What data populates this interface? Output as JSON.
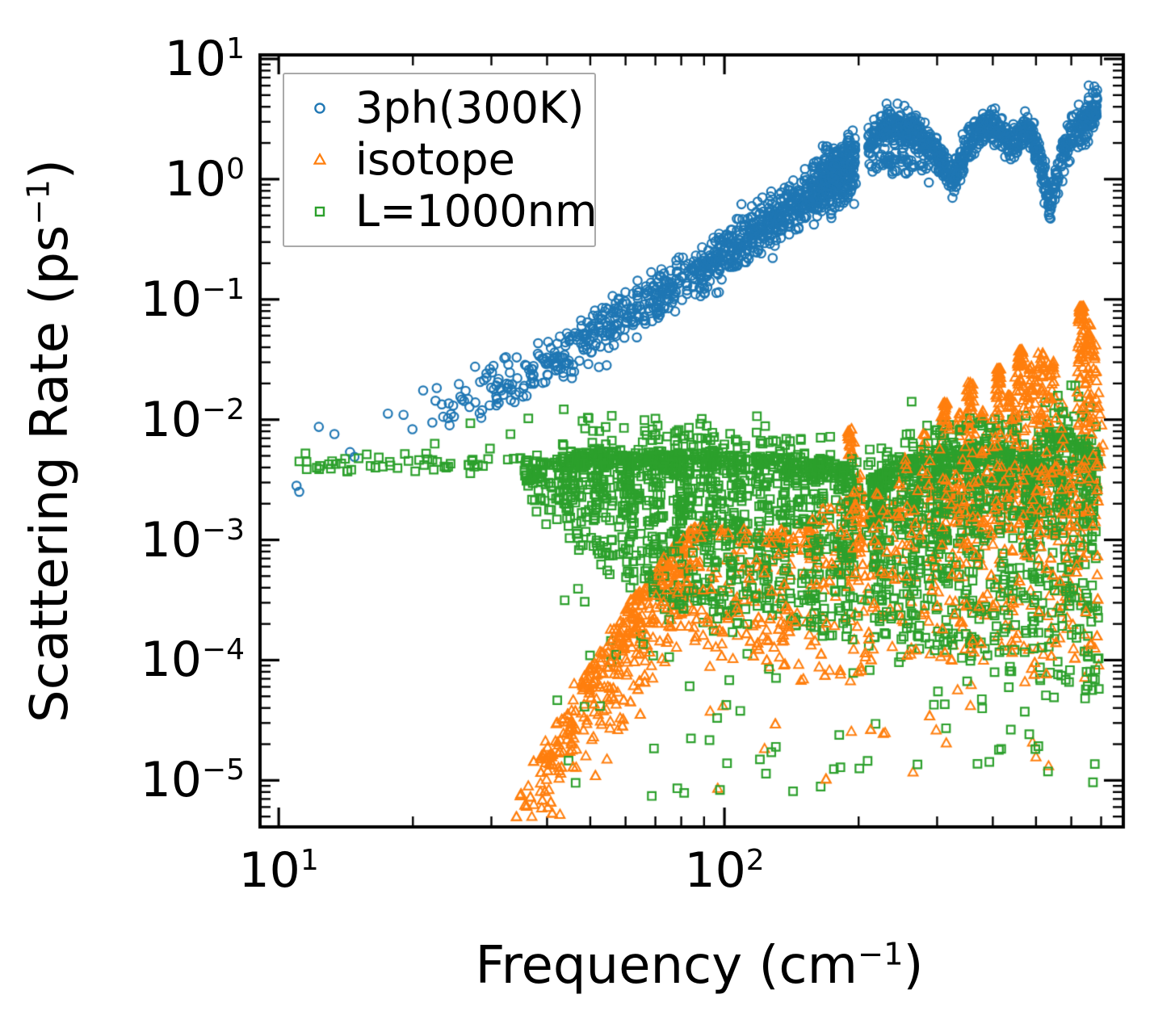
{
  "figure": {
    "background": "#ffffff",
    "frame_color": "#000000"
  },
  "chart_data": {
    "type": "scatter",
    "title": "",
    "scale": {
      "x": "log",
      "y": "log"
    },
    "xlabel": {
      "pre": "Frequency (cm",
      "sup": "−1",
      "post": ")"
    },
    "ylabel": {
      "pre": "Scattering Rate (ps",
      "sup": "−1",
      "post": ")"
    },
    "xlim": [
      9.08,
      785
    ],
    "ylim": [
      4.1e-06,
      10.8
    ],
    "grid": false,
    "tick_direction": "in",
    "x_major_ticks": [
      {
        "value": 10,
        "exp": "1"
      },
      {
        "value": 100,
        "exp": "2"
      }
    ],
    "y_major_ticks": [
      {
        "value": 10,
        "exp": "1"
      },
      {
        "value": 1,
        "exp": "0"
      },
      {
        "value": 0.1,
        "exp": "−1"
      },
      {
        "value": 0.01,
        "exp": "−2"
      },
      {
        "value": 0.001,
        "exp": "−3"
      },
      {
        "value": 0.0001,
        "exp": "−4"
      },
      {
        "value": 1e-05,
        "exp": "−5"
      }
    ],
    "legend": {
      "position": "upper-left",
      "border_color": "#a9a9a9",
      "entries": [
        {
          "label": "3ph(300K)",
          "marker": "circle",
          "color": "#1f77b4"
        },
        {
          "label": "isotope",
          "marker": "triangle",
          "color": "#ff7f0e"
        },
        {
          "label": "L=1000nm",
          "marker": "square",
          "color": "#2ca02c"
        }
      ]
    },
    "series": [
      {
        "name": "3ph(300K)",
        "marker": "circle",
        "color": "#1f77b4",
        "line_width": 2.2,
        "seed": 7,
        "summary": "Three-phonon scattering at 300K: rises ~ω² from (11 cm⁻¹, 3e-3 ps⁻¹) to (200 cm⁻¹, ~1.5 ps⁻¹), gap near 205 cm⁻¹, then plateau 2–3 ps⁻¹ with dips at ~330 and ~535 cm⁻¹ (to ~0.6), rising to ~6 ps⁻¹ at 680 cm⁻¹.",
        "cloud": [
          {
            "type": "points",
            "pts": [
              [
                1.04,
                -2.55
              ],
              [
                1.046,
                -2.6
              ],
              [
                1.09,
                -2.06
              ],
              [
                1.125,
                -2.12
              ],
              [
                1.16,
                -2.27
              ],
              [
                1.17,
                -2.31
              ],
              [
                1.245,
                -1.95
              ],
              [
                1.28,
                -1.96
              ],
              [
                1.3,
                -2.08
              ]
            ]
          },
          {
            "type": "band",
            "u0": 1.3,
            "u1": 2.295,
            "n": 950,
            "wexp": 2.0,
            "spread": 0.11,
            "anchors": [
              [
                1.3,
                -1.95
              ],
              [
                1.4,
                -1.87
              ],
              [
                1.5,
                -1.72
              ],
              [
                1.6,
                -1.55
              ],
              [
                1.7,
                -1.32
              ],
              [
                1.8,
                -1.08
              ],
              [
                1.9,
                -0.84
              ],
              [
                2.0,
                -0.6
              ],
              [
                2.1,
                -0.36
              ],
              [
                2.2,
                -0.13
              ],
              [
                2.25,
                -0.03
              ],
              [
                2.295,
                0.1
              ]
            ]
          },
          {
            "type": "band",
            "u0": 2.2,
            "u1": 2.295,
            "n": 120,
            "wexp": 1.3,
            "spread": 0.1,
            "anchors": [
              [
                2.2,
                0.02
              ],
              [
                2.25,
                0.12
              ],
              [
                2.295,
                0.2
              ]
            ]
          },
          {
            "type": "band",
            "u0": 2.322,
            "u1": 2.836,
            "n": 860,
            "wexp": 1.0,
            "spread": 0.075,
            "anchors": [
              [
                2.322,
                0.3
              ],
              [
                2.345,
                0.4
              ],
              [
                2.375,
                0.45
              ],
              [
                2.405,
                0.42
              ],
              [
                2.435,
                0.36
              ],
              [
                2.455,
                0.3
              ],
              [
                2.475,
                0.22
              ],
              [
                2.495,
                0.12
              ],
              [
                2.515,
                -0.02
              ],
              [
                2.53,
                0.12
              ],
              [
                2.55,
                0.3
              ],
              [
                2.57,
                0.4
              ],
              [
                2.595,
                0.45
              ],
              [
                2.615,
                0.42
              ],
              [
                2.63,
                0.33
              ],
              [
                2.645,
                0.27
              ],
              [
                2.66,
                0.36
              ],
              [
                2.675,
                0.43
              ],
              [
                2.69,
                0.38
              ],
              [
                2.705,
                0.22
              ],
              [
                2.718,
                -0.02
              ],
              [
                2.728,
                -0.22
              ],
              [
                2.74,
                -0.08
              ],
              [
                2.755,
                0.14
              ],
              [
                2.77,
                0.32
              ],
              [
                2.785,
                0.42
              ],
              [
                2.8,
                0.43
              ],
              [
                2.815,
                0.46
              ],
              [
                2.828,
                0.52
              ],
              [
                2.836,
                0.56
              ]
            ]
          },
          {
            "type": "band",
            "u0": 2.325,
            "u1": 2.46,
            "n": 55,
            "wexp": 1.0,
            "spread": 0.05,
            "anchors": [
              [
                2.325,
                0.15
              ],
              [
                2.4,
                0.13
              ],
              [
                2.46,
                0.06
              ]
            ]
          },
          {
            "type": "box",
            "u0": 2.815,
            "u1": 2.838,
            "v0": 0.52,
            "v1": 0.78,
            "n": 20
          }
        ]
      },
      {
        "name": "isotope",
        "marker": "triangle",
        "color": "#ff7f0e",
        "line_width": 2.0,
        "seed": 13,
        "replay_on_top_fraction": 0.25,
        "summary": "Isotope scattering: steep ~ω⁴⁺ wedge from (33 cm⁻¹, 1e-5 ps⁻¹) to (85 cm⁻¹, ~1e-3), broad band ~1e-3 at mid frequencies, tall narrow spikes above 200 cm⁻¹ peaking near 0.09 ps⁻¹ at ~630 cm⁻¹.",
        "cloud": [
          {
            "type": "edgeband",
            "u0": 1.515,
            "u1": 1.93,
            "n": 430,
            "wexp": 1.7,
            "depth": 0.33,
            "deep": 1.05,
            "deepfrac": 0.13,
            "top": [
              [
                1.515,
                -5.18
              ],
              [
                1.6,
                -4.66
              ],
              [
                1.7,
                -4.03
              ],
              [
                1.8,
                -3.46
              ],
              [
                1.875,
                -3.1
              ],
              [
                1.93,
                -2.9
              ]
            ]
          },
          {
            "type": "fillband",
            "n": 280,
            "pskew": 2.0,
            "top": [
              [
                1.93,
                -2.86
              ],
              [
                2.02,
                -2.94
              ],
              [
                2.1,
                -2.98
              ],
              [
                2.17,
                -2.88
              ],
              [
                2.24,
                -2.7
              ],
              [
                2.31,
                -2.68
              ]
            ],
            "bottom": [
              [
                1.93,
                -3.9
              ],
              [
                2.31,
                -4.3
              ]
            ]
          },
          {
            "type": "fillband",
            "n": 430,
            "pskew": 1.8,
            "top": [
              [
                2.31,
                -2.68
              ],
              [
                2.45,
                -2.6
              ],
              [
                2.6,
                -2.5
              ],
              [
                2.75,
                -2.42
              ],
              [
                2.84,
                -2.32
              ]
            ],
            "bottom": [
              [
                2.31,
                -4.0
              ],
              [
                2.84,
                -4.05
              ]
            ]
          },
          {
            "type": "spikes",
            "su": 0.006,
            "list": [
              [
                2.28,
                -2.08,
                1.3,
                45
              ],
              [
                2.3,
                -2.45,
                0.95,
                25
              ],
              [
                2.4,
                -2.32,
                0.85,
                25
              ],
              [
                2.447,
                -2.12,
                0.95,
                28
              ],
              [
                2.494,
                -1.86,
                1.35,
                50
              ],
              [
                2.527,
                -1.95,
                1.1,
                30
              ],
              [
                2.549,
                -1.69,
                1.45,
                55
              ],
              [
                2.578,
                -1.92,
                1.15,
                30
              ],
              [
                2.616,
                -1.58,
                1.55,
                60
              ],
              [
                2.64,
                -1.8,
                1.2,
                30
              ],
              [
                2.663,
                -1.42,
                1.6,
                65
              ],
              [
                2.688,
                -1.56,
                1.45,
                40
              ],
              [
                2.712,
                -1.45,
                1.55,
                55
              ],
              [
                2.735,
                -1.52,
                1.45,
                45
              ],
              [
                2.76,
                -1.85,
                1.1,
                25
              ],
              [
                2.8,
                -1.06,
                1.85,
                80
              ],
              [
                2.816,
                -1.2,
                1.6,
                45
              ],
              [
                2.83,
                -1.38,
                1.4,
                35
              ]
            ]
          },
          {
            "type": "box",
            "u0": 1.95,
            "u1": 2.84,
            "v0": -5.1,
            "v1": -3.95,
            "n": 26
          },
          {
            "type": "points",
            "pts": [
              [
                1.985,
                -5.07
              ],
              [
                1.56,
                -5.05
              ],
              [
                2.3,
                -4.1
              ]
            ]
          }
        ]
      },
      {
        "name": "L=1000nm",
        "marker": "square",
        "color": "#2ca02c",
        "line_width": 2.2,
        "seed": 5,
        "summary": "Boundary scattering for L=1000nm: flat near 4e-3 ps⁻¹ below 35 cm⁻¹, then a broad dense band between ~1e-4 and ~1e-2 up to 680 cm⁻¹ with vertical streaks and sparse outliers down to 1e-5.",
        "cloud": [
          {
            "type": "band",
            "u0": 1.02,
            "u1": 1.55,
            "n": 52,
            "wexp": 1.0,
            "spread": 0.045,
            "anchors": [
              [
                1.02,
                -2.39
              ],
              [
                1.3,
                -2.36
              ],
              [
                1.55,
                -2.31
              ]
            ]
          },
          {
            "type": "points",
            "pts": [
              [
                1.43,
                -2.03
              ],
              [
                1.52,
                -2.12
              ],
              [
                1.56,
                -1.99
              ],
              [
                1.35,
                -2.2
              ],
              [
                1.06,
                -2.28
              ],
              [
                1.6,
                -2.87
              ],
              [
                1.63,
                -2.67
              ],
              [
                1.66,
                -2.55
              ]
            ]
          },
          {
            "type": "band",
            "u0": 1.58,
            "u1": 2.84,
            "n": 190,
            "wexp": 1.2,
            "spread": 0.09,
            "anchors": [
              [
                1.58,
                -2.2
              ],
              [
                1.7,
                -2.1
              ],
              [
                1.9,
                -2.15
              ],
              [
                2.1,
                -2.18
              ],
              [
                2.2,
                -2.22
              ],
              [
                2.3,
                -2.45
              ],
              [
                2.45,
                -2.15
              ],
              [
                2.58,
                -2.05
              ],
              [
                2.7,
                -2.15
              ],
              [
                2.78,
                -1.85
              ],
              [
                2.84,
                -2.05
              ]
            ]
          },
          {
            "type": "fillband",
            "n": 2350,
            "pskew": 2.3,
            "top": [
              [
                1.55,
                -2.38
              ],
              [
                1.62,
                -2.32
              ],
              [
                1.72,
                -2.28
              ],
              [
                1.85,
                -2.3
              ],
              [
                2.0,
                -2.3
              ],
              [
                2.1,
                -2.32
              ],
              [
                2.2,
                -2.35
              ],
              [
                2.27,
                -2.42
              ],
              [
                2.32,
                -2.55
              ],
              [
                2.4,
                -2.35
              ],
              [
                2.5,
                -2.28
              ],
              [
                2.58,
                -2.22
              ],
              [
                2.65,
                -2.3
              ],
              [
                2.7,
                -2.35
              ],
              [
                2.745,
                -2.1
              ],
              [
                2.78,
                -2.15
              ],
              [
                2.84,
                -2.3
              ]
            ],
            "bottom": [
              [
                1.55,
                -2.6
              ],
              [
                1.65,
                -3.0
              ],
              [
                1.75,
                -3.3
              ],
              [
                1.9,
                -3.6
              ],
              [
                2.1,
                -3.75
              ],
              [
                2.3,
                -3.85
              ],
              [
                2.5,
                -4.0
              ],
              [
                2.7,
                -4.15
              ],
              [
                2.84,
                -4.35
              ]
            ],
            "columns": {
              "frac": 0.55,
              "sigma": 0.013,
              "centers": [
                1.66,
                1.72,
                1.78,
                1.845,
                1.905,
                1.965,
                2.025,
                2.085,
                2.145,
                2.205,
                2.265,
                2.35,
                2.425,
                2.49,
                2.555,
                2.625,
                2.69,
                2.755,
                2.815
              ]
            },
            "gap": [
              2.295,
              2.325
            ]
          },
          {
            "type": "box",
            "u0": 1.62,
            "u1": 2.84,
            "v0": -5.15,
            "v1": -3.35,
            "n": 105
          },
          {
            "type": "points",
            "pts": [
              [
                1.837,
                -5.13
              ],
              [
                1.99,
                -5.08
              ],
              [
                2.42,
                -1.85
              ],
              [
                2.748,
                -1.8
              ],
              [
                2.76,
                -1.95
              ]
            ]
          }
        ]
      }
    ]
  }
}
